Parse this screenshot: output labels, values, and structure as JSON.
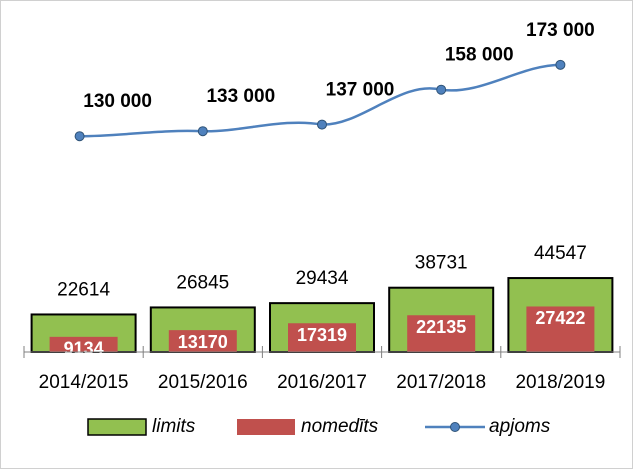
{
  "chart_data": {
    "type": "bar",
    "categories": [
      "2014/2015",
      "2015/2016",
      "2016/2017",
      "2017/2018",
      "2018/2019"
    ],
    "series": [
      {
        "name": "limits",
        "type": "bar",
        "color": "#92c050",
        "values": [
          22614,
          26845,
          29434,
          38731,
          44547
        ]
      },
      {
        "name": "nomedīts",
        "type": "bar",
        "color": "#c0504d",
        "values": [
          9134,
          13170,
          17319,
          22135,
          27422
        ]
      },
      {
        "name": "apjoms",
        "type": "line",
        "color": "#4f81bd",
        "values": [
          130000,
          133000,
          137000,
          158000,
          173000
        ],
        "value_labels": [
          "130 000",
          "133 000",
          "137 000",
          "158 000",
          "173 000"
        ]
      }
    ],
    "ylim": [
      0,
      200000
    ],
    "legend": "bottom"
  }
}
